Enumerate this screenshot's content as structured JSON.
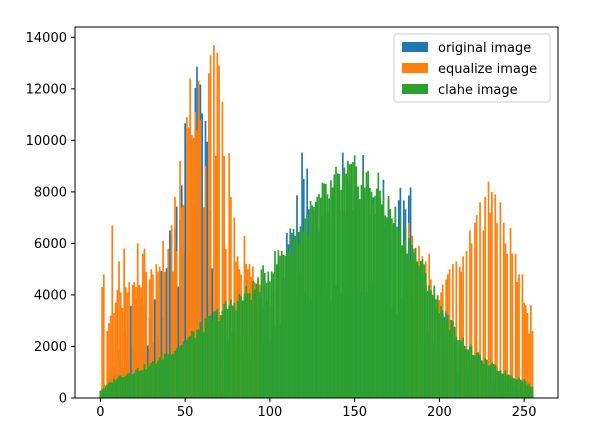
{
  "chart_data": {
    "type": "bar",
    "xlim": [
      -15,
      270
    ],
    "ylim": [
      0,
      14400
    ],
    "x_ticks": [
      0,
      50,
      100,
      150,
      200,
      250
    ],
    "y_ticks": [
      0,
      2000,
      4000,
      6000,
      8000,
      10000,
      12000,
      14000
    ],
    "legend_position": "top-right",
    "bins": 256,
    "series": [
      {
        "name": "original image",
        "color": "#1f77b4",
        "peaks": [
          {
            "x": 3,
            "y": 300
          },
          {
            "x": 20,
            "y": 3500
          },
          {
            "x": 28,
            "y": 3300
          },
          {
            "x": 35,
            "y": 4500
          },
          {
            "x": 45,
            "y": 6800
          },
          {
            "x": 50,
            "y": 9500
          },
          {
            "x": 54,
            "y": 11500
          },
          {
            "x": 57,
            "y": 13500
          },
          {
            "x": 60,
            "y": 11000
          },
          {
            "x": 64,
            "y": 8000
          },
          {
            "x": 68,
            "y": 3500
          },
          {
            "x": 72,
            "y": 2500
          },
          {
            "x": 80,
            "y": 2200
          },
          {
            "x": 100,
            "y": 4000
          },
          {
            "x": 115,
            "y": 6500
          },
          {
            "x": 120,
            "y": 9000
          },
          {
            "x": 124,
            "y": 6500
          },
          {
            "x": 140,
            "y": 8400
          },
          {
            "x": 160,
            "y": 8200
          },
          {
            "x": 175,
            "y": 6700
          },
          {
            "x": 182,
            "y": 8500
          },
          {
            "x": 186,
            "y": 5000
          },
          {
            "x": 200,
            "y": 3200
          },
          {
            "x": 220,
            "y": 1600
          },
          {
            "x": 240,
            "y": 900
          },
          {
            "x": 255,
            "y": 300
          }
        ]
      },
      {
        "name": "equalize image",
        "color": "#ff7f0e",
        "spikes": [
          [
            1,
            4300
          ],
          [
            2,
            4800
          ],
          [
            4,
            2600
          ],
          [
            5,
            2900
          ],
          [
            6,
            3200
          ],
          [
            7,
            6700
          ],
          [
            8,
            3300
          ],
          [
            9,
            3700
          ],
          [
            10,
            4200
          ],
          [
            11,
            5300
          ],
          [
            12,
            4100
          ],
          [
            13,
            3500
          ],
          [
            14,
            5800
          ],
          [
            15,
            4300
          ],
          [
            16,
            4100
          ],
          [
            17,
            4500
          ],
          [
            19,
            4400
          ],
          [
            20,
            4500
          ],
          [
            21,
            4300
          ],
          [
            22,
            6000
          ],
          [
            23,
            4400
          ],
          [
            24,
            4300
          ],
          [
            25,
            5600
          ],
          [
            26,
            5800
          ],
          [
            27,
            4900
          ],
          [
            29,
            4600
          ],
          [
            30,
            5000
          ],
          [
            31,
            4800
          ],
          [
            33,
            5200
          ],
          [
            34,
            4900
          ],
          [
            35,
            5100
          ],
          [
            37,
            6100
          ],
          [
            38,
            4900
          ],
          [
            40,
            5800
          ],
          [
            42,
            6700
          ],
          [
            43,
            4900
          ],
          [
            44,
            7800
          ],
          [
            45,
            5700
          ],
          [
            47,
            9200
          ],
          [
            48,
            7400
          ],
          [
            49,
            7500
          ],
          [
            51,
            10900
          ],
          [
            52,
            10500
          ],
          [
            53,
            12400
          ],
          [
            54,
            10200
          ],
          [
            55,
            10100
          ],
          [
            56,
            11100
          ],
          [
            57,
            10400
          ],
          [
            58,
            12300
          ],
          [
            59,
            10800
          ],
          [
            61,
            7400
          ],
          [
            62,
            9000
          ],
          [
            64,
            12600
          ],
          [
            65,
            13300
          ],
          [
            67,
            13700
          ],
          [
            68,
            9400
          ],
          [
            69,
            13400
          ],
          [
            70,
            12900
          ],
          [
            72,
            11500
          ],
          [
            73,
            9400
          ],
          [
            74,
            5800
          ],
          [
            76,
            9500
          ],
          [
            77,
            7800
          ],
          [
            79,
            7000
          ],
          [
            80,
            5300
          ],
          [
            81,
            5500
          ],
          [
            82,
            5000
          ],
          [
            83,
            4800
          ],
          [
            85,
            6300
          ],
          [
            86,
            5200
          ],
          [
            87,
            5000
          ],
          [
            88,
            5200
          ],
          [
            89,
            4700
          ],
          [
            90,
            5100
          ],
          [
            91,
            4500
          ],
          [
            92,
            3900
          ],
          [
            93,
            4700
          ],
          [
            94,
            4400
          ],
          [
            182,
            6800
          ],
          [
            184,
            6300
          ],
          [
            185,
            5800
          ],
          [
            186,
            5500
          ],
          [
            188,
            5900
          ],
          [
            190,
            5500
          ],
          [
            192,
            5300
          ],
          [
            194,
            5600
          ],
          [
            195,
            4600
          ],
          [
            197,
            4300
          ],
          [
            199,
            4000
          ],
          [
            200,
            3800
          ],
          [
            201,
            4100
          ],
          [
            202,
            4400
          ],
          [
            204,
            4600
          ],
          [
            205,
            4800
          ],
          [
            206,
            5000
          ],
          [
            208,
            5200
          ],
          [
            210,
            5300
          ],
          [
            212,
            5100
          ],
          [
            213,
            4900
          ],
          [
            214,
            5500
          ],
          [
            216,
            5700
          ],
          [
            218,
            6500
          ],
          [
            219,
            6000
          ],
          [
            221,
            6800
          ],
          [
            222,
            7100
          ],
          [
            224,
            7600
          ],
          [
            226,
            6500
          ],
          [
            227,
            7800
          ],
          [
            229,
            8400
          ],
          [
            230,
            7200
          ],
          [
            231,
            8000
          ],
          [
            233,
            7900
          ],
          [
            234,
            6800
          ],
          [
            236,
            7600
          ],
          [
            238,
            6800
          ],
          [
            239,
            6000
          ],
          [
            240,
            5600
          ],
          [
            242,
            6600
          ],
          [
            243,
            5600
          ],
          [
            245,
            5600
          ],
          [
            246,
            4500
          ],
          [
            247,
            4800
          ],
          [
            249,
            4800
          ],
          [
            250,
            3700
          ],
          [
            251,
            3600
          ],
          [
            252,
            3300
          ],
          [
            253,
            2500
          ],
          [
            254,
            3600
          ],
          [
            255,
            2600
          ]
        ]
      },
      {
        "name": "clahe image",
        "color": "#2ca02c",
        "peaks": [
          {
            "x": 0,
            "y": 300
          },
          {
            "x": 10,
            "y": 800
          },
          {
            "x": 30,
            "y": 1300
          },
          {
            "x": 50,
            "y": 2200
          },
          {
            "x": 70,
            "y": 3300
          },
          {
            "x": 90,
            "y": 4200
          },
          {
            "x": 100,
            "y": 5000
          },
          {
            "x": 110,
            "y": 5900
          },
          {
            "x": 120,
            "y": 6700
          },
          {
            "x": 130,
            "y": 7600
          },
          {
            "x": 140,
            "y": 8300
          },
          {
            "x": 148,
            "y": 8600
          },
          {
            "x": 155,
            "y": 8500
          },
          {
            "x": 165,
            "y": 7900
          },
          {
            "x": 175,
            "y": 6800
          },
          {
            "x": 185,
            "y": 5700
          },
          {
            "x": 195,
            "y": 4300
          },
          {
            "x": 205,
            "y": 3000
          },
          {
            "x": 215,
            "y": 2100
          },
          {
            "x": 225,
            "y": 1500
          },
          {
            "x": 235,
            "y": 1100
          },
          {
            "x": 245,
            "y": 800
          },
          {
            "x": 250,
            "y": 700
          },
          {
            "x": 255,
            "y": 400
          }
        ]
      }
    ]
  }
}
